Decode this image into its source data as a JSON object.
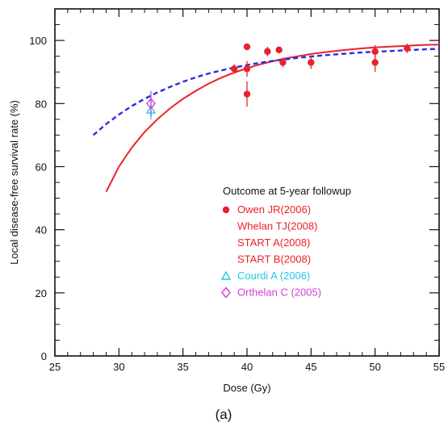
{
  "chart_data": {
    "type": "scatter",
    "xlabel": "Dose (Gy)",
    "ylabel": "Local disease-free survival rate (%)",
    "xlim": [
      25,
      55
    ],
    "ylim": [
      0,
      110
    ],
    "x_ticks": [
      25,
      30,
      35,
      40,
      45,
      50,
      55
    ],
    "y_ticks": [
      0,
      20,
      40,
      60,
      80,
      100
    ],
    "grid": false,
    "legend_position": "lower-right",
    "legend_title": "Outcome at 5-year followup",
    "caption": "(a)",
    "series": [
      {
        "name": "Owen JR(2006)",
        "color": "#e8222a",
        "marker": "filled-circle",
        "points": [
          {
            "x": 39.0,
            "y": 91,
            "err": 1.5
          },
          {
            "x": 40.0,
            "y": 98,
            "err": 1
          },
          {
            "x": 40.0,
            "y": 91,
            "err": 2.5
          },
          {
            "x": 40.0,
            "y": 83,
            "err": 4
          },
          {
            "x": 41.6,
            "y": 96.5,
            "err": 1.5
          },
          {
            "x": 42.5,
            "y": 97,
            "err": 1
          },
          {
            "x": 42.8,
            "y": 93,
            "err": 1.5
          },
          {
            "x": 45.0,
            "y": 93,
            "err": 2
          },
          {
            "x": 50.0,
            "y": 96.5,
            "err": 2
          },
          {
            "x": 50.0,
            "y": 93,
            "err": 3
          },
          {
            "x": 52.5,
            "y": 97.5,
            "err": 1.5
          }
        ]
      },
      {
        "name": "Whelan TJ(2008)",
        "color": "#e8222a",
        "marker": "none",
        "points": []
      },
      {
        "name": "START A(2008)",
        "color": "#e8222a",
        "marker": "none",
        "points": []
      },
      {
        "name": "START B(2008)",
        "color": "#e8222a",
        "marker": "none",
        "points": []
      },
      {
        "name": "Courdi A (2006)",
        "color": "#23c8e8",
        "marker": "open-triangle",
        "points": [
          {
            "x": 32.5,
            "y": 78,
            "err": 3
          }
        ]
      },
      {
        "name": "Orthelan C (2005)",
        "color": "#d43fd4",
        "marker": "open-diamond",
        "points": [
          {
            "x": 32.5,
            "y": 80,
            "err": 4
          }
        ]
      }
    ],
    "curves": [
      {
        "style": "solid",
        "color": "#e8222a",
        "points": [
          [
            29,
            52
          ],
          [
            30,
            60
          ],
          [
            31,
            66
          ],
          [
            32,
            71
          ],
          [
            33,
            75
          ],
          [
            34,
            78.5
          ],
          [
            35,
            81.5
          ],
          [
            36,
            84
          ],
          [
            37,
            86.3
          ],
          [
            38,
            88.2
          ],
          [
            39,
            89.8
          ],
          [
            40,
            91.2
          ],
          [
            41,
            92.4
          ],
          [
            42,
            93.4
          ],
          [
            43,
            94.3
          ],
          [
            44,
            95
          ],
          [
            45,
            95.7
          ],
          [
            46,
            96.2
          ],
          [
            47,
            96.7
          ],
          [
            48,
            97.1
          ],
          [
            49,
            97.5
          ],
          [
            50,
            97.8
          ],
          [
            51,
            98
          ],
          [
            52,
            98.2
          ],
          [
            53,
            98.4
          ],
          [
            54,
            98.6
          ],
          [
            55,
            98.7
          ]
        ]
      },
      {
        "style": "dashed",
        "color": "#2a2ae8",
        "points": [
          [
            28,
            70
          ],
          [
            29,
            73.5
          ],
          [
            30,
            76.5
          ],
          [
            31,
            79.2
          ],
          [
            32,
            81.5
          ],
          [
            33,
            83.5
          ],
          [
            34,
            85.3
          ],
          [
            35,
            86.9
          ],
          [
            36,
            88.3
          ],
          [
            37,
            89.5
          ],
          [
            38,
            90.5
          ],
          [
            39,
            91.4
          ],
          [
            40,
            92.2
          ],
          [
            41,
            92.9
          ],
          [
            42,
            93.5
          ],
          [
            43,
            94
          ],
          [
            44,
            94.5
          ],
          [
            45,
            94.9
          ],
          [
            46,
            95.3
          ],
          [
            47,
            95.6
          ],
          [
            48,
            95.9
          ],
          [
            49,
            96.2
          ],
          [
            50,
            96.4
          ],
          [
            51,
            96.6
          ],
          [
            52,
            96.8
          ],
          [
            53,
            97
          ],
          [
            54,
            97.2
          ],
          [
            55,
            97.3
          ]
        ]
      }
    ]
  }
}
